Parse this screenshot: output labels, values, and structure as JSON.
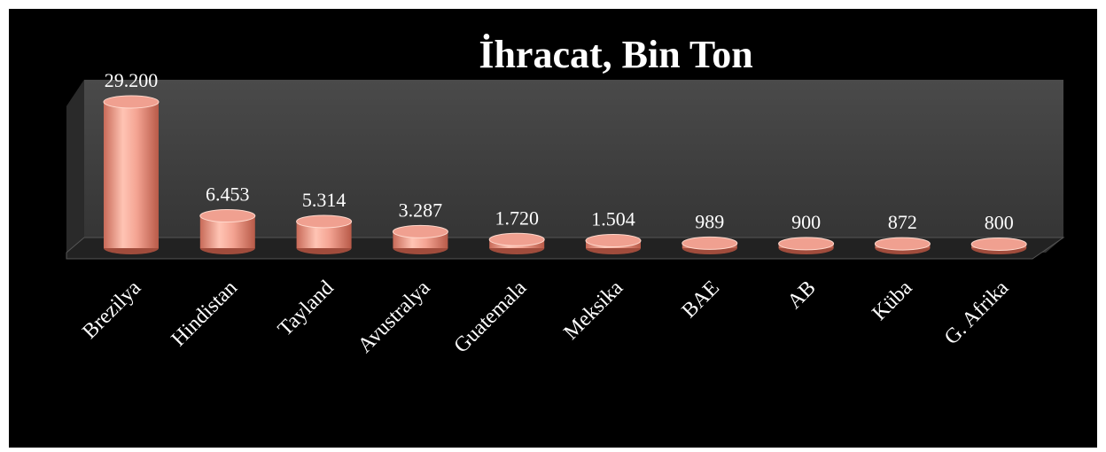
{
  "chart_data": {
    "type": "bar",
    "title": "İhracat, Bin Ton",
    "categories": [
      "Brezilya",
      "Hindistan",
      "Tayland",
      "Avustralya",
      "Guatemala",
      "Meksika",
      "BAE",
      "AB",
      "Küba",
      "G. Afrika"
    ],
    "values": [
      29200,
      6453,
      5314,
      3287,
      1720,
      1504,
      989,
      900,
      872,
      800
    ],
    "value_labels": [
      "29.200",
      "6.453",
      "5.314",
      "3.287",
      "1.720",
      "1.504",
      "989",
      "900",
      "872",
      "800"
    ],
    "color": "#f0a090"
  }
}
